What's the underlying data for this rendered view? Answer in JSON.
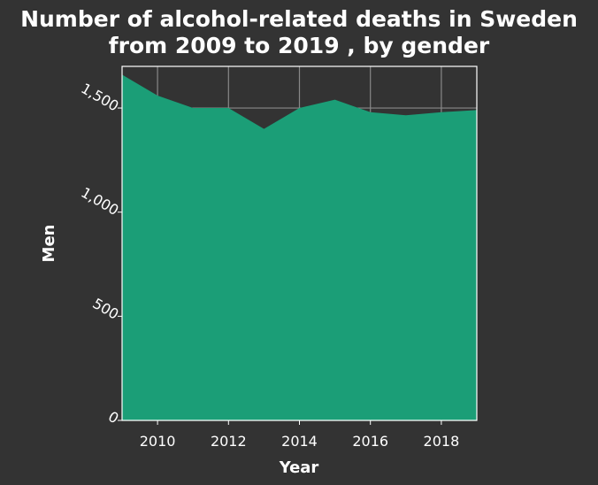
{
  "chart_data": {
    "type": "area",
    "title_line1": "Number of alcohol-related deaths in Sweden",
    "title_line2": "from 2009 to 2019 , by gender",
    "xlabel": "Year",
    "ylabel": "Men",
    "x": [
      2009,
      2010,
      2011,
      2012,
      2013,
      2014,
      2015,
      2016,
      2017,
      2018,
      2019
    ],
    "series": [
      {
        "values": [
          1660,
          1560,
          1500,
          1500,
          1400,
          1500,
          1540,
          1480,
          1465,
          1480,
          1490
        ]
      }
    ],
    "xlim": [
      2009,
      2019
    ],
    "ylim": [
      0,
      1700
    ],
    "xticks": [
      2010,
      2012,
      2014,
      2016,
      2018
    ],
    "yticks": [
      0,
      500,
      1000,
      1500
    ],
    "ytick_labels": [
      "0",
      "500",
      "1,000",
      "1,500"
    ],
    "grid": true,
    "colors": {
      "background": "#333333",
      "fill": "#1b9e77",
      "grid": "#888888",
      "text": "#ffffff"
    }
  }
}
